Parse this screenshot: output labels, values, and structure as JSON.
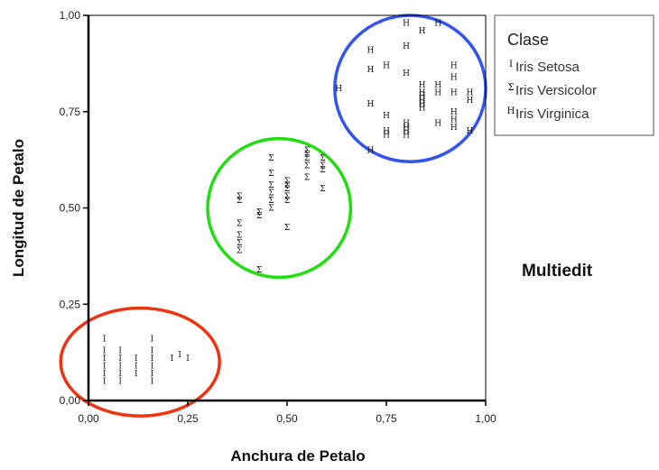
{
  "chart_data": {
    "type": "scatter",
    "xlabel": "Anchura de Petalo",
    "ylabel": "Longitud de Petalo",
    "xlim": [
      0,
      1
    ],
    "ylim": [
      0,
      1
    ],
    "x_ticks": [
      0,
      0.25,
      0.5,
      0.75,
      1
    ],
    "x_tick_labels": [
      "0,00",
      "0,25",
      "0,50",
      "0,75",
      "1,00"
    ],
    "y_ticks": [
      0,
      0.25,
      0.5,
      0.75,
      1
    ],
    "y_tick_labels": [
      "0,00",
      "0,25",
      "0,50",
      "0,75",
      "1,00"
    ],
    "grid": false,
    "legend": {
      "title": "Clase",
      "placement": "top-right",
      "entries": [
        {
          "symbol": "I",
          "label": "Iris Setosa"
        },
        {
          "symbol": "Σ",
          "label": "Iris Versicolor"
        },
        {
          "symbol": "H",
          "label": "Iris Virginica"
        }
      ]
    },
    "series": [
      {
        "name": "Iris Setosa",
        "symbol": "I",
        "points": [
          [
            0.04,
            0.05
          ],
          [
            0.04,
            0.07
          ],
          [
            0.04,
            0.09
          ],
          [
            0.04,
            0.11
          ],
          [
            0.04,
            0.13
          ],
          [
            0.04,
            0.16
          ],
          [
            0.08,
            0.05
          ],
          [
            0.08,
            0.07
          ],
          [
            0.08,
            0.09
          ],
          [
            0.08,
            0.11
          ],
          [
            0.08,
            0.13
          ],
          [
            0.12,
            0.07
          ],
          [
            0.12,
            0.09
          ],
          [
            0.12,
            0.11
          ],
          [
            0.16,
            0.05
          ],
          [
            0.16,
            0.07
          ],
          [
            0.16,
            0.09
          ],
          [
            0.16,
            0.11
          ],
          [
            0.16,
            0.13
          ],
          [
            0.16,
            0.16
          ],
          [
            0.21,
            0.11
          ],
          [
            0.23,
            0.12
          ],
          [
            0.25,
            0.11
          ]
        ]
      },
      {
        "name": "Iris Versicolor",
        "symbol": "Σ",
        "points": [
          [
            0.38,
            0.39
          ],
          [
            0.38,
            0.41
          ],
          [
            0.38,
            0.43
          ],
          [
            0.38,
            0.46
          ],
          [
            0.38,
            0.52
          ],
          [
            0.38,
            0.53
          ],
          [
            0.43,
            0.34
          ],
          [
            0.43,
            0.48
          ],
          [
            0.43,
            0.49
          ],
          [
            0.46,
            0.5
          ],
          [
            0.46,
            0.52
          ],
          [
            0.46,
            0.54
          ],
          [
            0.46,
            0.56
          ],
          [
            0.46,
            0.59
          ],
          [
            0.46,
            0.63
          ],
          [
            0.5,
            0.45
          ],
          [
            0.5,
            0.52
          ],
          [
            0.5,
            0.53
          ],
          [
            0.5,
            0.55
          ],
          [
            0.5,
            0.56
          ],
          [
            0.5,
            0.57
          ],
          [
            0.55,
            0.58
          ],
          [
            0.55,
            0.61
          ],
          [
            0.55,
            0.63
          ],
          [
            0.55,
            0.64
          ],
          [
            0.55,
            0.65
          ],
          [
            0.59,
            0.55
          ],
          [
            0.59,
            0.6
          ],
          [
            0.59,
            0.61
          ],
          [
            0.59,
            0.63
          ]
        ]
      },
      {
        "name": "Iris Virginica",
        "symbol": "H",
        "points": [
          [
            0.63,
            0.81
          ],
          [
            0.71,
            0.65
          ],
          [
            0.71,
            0.77
          ],
          [
            0.71,
            0.86
          ],
          [
            0.71,
            0.91
          ],
          [
            0.75,
            0.69
          ],
          [
            0.75,
            0.7
          ],
          [
            0.75,
            0.74
          ],
          [
            0.75,
            0.87
          ],
          [
            0.8,
            0.69
          ],
          [
            0.8,
            0.7
          ],
          [
            0.8,
            0.71
          ],
          [
            0.8,
            0.72
          ],
          [
            0.8,
            0.85
          ],
          [
            0.8,
            0.92
          ],
          [
            0.8,
            0.98
          ],
          [
            0.84,
            0.76
          ],
          [
            0.84,
            0.77
          ],
          [
            0.84,
            0.78
          ],
          [
            0.84,
            0.79
          ],
          [
            0.84,
            0.8
          ],
          [
            0.84,
            0.82
          ],
          [
            0.84,
            0.96
          ],
          [
            0.88,
            0.72
          ],
          [
            0.88,
            0.8
          ],
          [
            0.88,
            0.82
          ],
          [
            0.88,
            0.98
          ],
          [
            0.92,
            0.71
          ],
          [
            0.92,
            0.73
          ],
          [
            0.92,
            0.75
          ],
          [
            0.92,
            0.8
          ],
          [
            0.92,
            0.84
          ],
          [
            0.92,
            0.87
          ],
          [
            0.96,
            0.7
          ],
          [
            0.96,
            0.78
          ],
          [
            0.96,
            0.8
          ]
        ]
      }
    ],
    "annotations": [
      {
        "text": "Multiedit",
        "placement": "right of plot"
      }
    ],
    "highlight_circles": [
      {
        "cluster": "Iris Setosa",
        "color": "#ee3311",
        "center": [
          0.13,
          0.1
        ],
        "rx": 0.2,
        "ry": 0.14
      },
      {
        "cluster": "Iris Versicolor",
        "color": "#22dd11",
        "center": [
          0.48,
          0.5
        ],
        "rx": 0.18,
        "ry": 0.18
      },
      {
        "cluster": "Iris Virginica",
        "color": "#3355ee",
        "center": [
          0.81,
          0.81
        ],
        "rx": 0.19,
        "ry": 0.19
      }
    ]
  }
}
